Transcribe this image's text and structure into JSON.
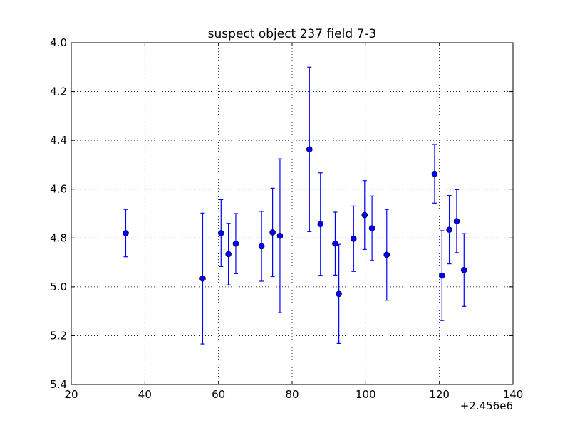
{
  "chart_data": {
    "type": "scatter",
    "title": "suspect object 237 field 7-3",
    "xlabel": "",
    "ylabel": "",
    "x_offset_label": "+2.456e6",
    "xlim": [
      20,
      140
    ],
    "ylim": [
      4.0,
      5.4
    ],
    "y_inverted": true,
    "grid": true,
    "x_ticks": [
      20,
      40,
      60,
      80,
      100,
      120,
      140
    ],
    "y_ticks": [
      4.0,
      4.2,
      4.4,
      4.6,
      4.8,
      5.0,
      5.2,
      5.4
    ],
    "x_tick_labels": [
      "20",
      "40",
      "60",
      "80",
      "100",
      "120",
      "140"
    ],
    "y_tick_labels": [
      "4.0",
      "4.2",
      "4.4",
      "4.6",
      "4.8",
      "5.0",
      "5.2",
      "5.4"
    ],
    "marker_color": "#0000ff",
    "series": [
      {
        "points": [
          {
            "x": 34.8,
            "y": 4.78,
            "err": 0.097
          },
          {
            "x": 55.7,
            "y": 4.966,
            "err": 0.268
          },
          {
            "x": 60.7,
            "y": 4.78,
            "err": 0.137
          },
          {
            "x": 62.7,
            "y": 4.866,
            "err": 0.126
          },
          {
            "x": 64.7,
            "y": 4.823,
            "err": 0.123
          },
          {
            "x": 71.7,
            "y": 4.834,
            "err": 0.143
          },
          {
            "x": 74.7,
            "y": 4.777,
            "err": 0.181
          },
          {
            "x": 76.7,
            "y": 4.791,
            "err": 0.315
          },
          {
            "x": 84.7,
            "y": 4.437,
            "err": 0.337
          },
          {
            "x": 87.7,
            "y": 4.743,
            "err": 0.21
          },
          {
            "x": 91.7,
            "y": 4.823,
            "err": 0.129
          },
          {
            "x": 92.7,
            "y": 5.029,
            "err": 0.203
          },
          {
            "x": 96.7,
            "y": 4.803,
            "err": 0.134
          },
          {
            "x": 99.7,
            "y": 4.706,
            "err": 0.141
          },
          {
            "x": 101.7,
            "y": 4.76,
            "err": 0.132
          },
          {
            "x": 105.7,
            "y": 4.869,
            "err": 0.186
          },
          {
            "x": 118.7,
            "y": 4.537,
            "err": 0.12
          },
          {
            "x": 120.7,
            "y": 4.954,
            "err": 0.184
          },
          {
            "x": 122.7,
            "y": 4.766,
            "err": 0.14
          },
          {
            "x": 124.7,
            "y": 4.731,
            "err": 0.129
          },
          {
            "x": 126.7,
            "y": 4.931,
            "err": 0.149
          }
        ]
      }
    ]
  }
}
